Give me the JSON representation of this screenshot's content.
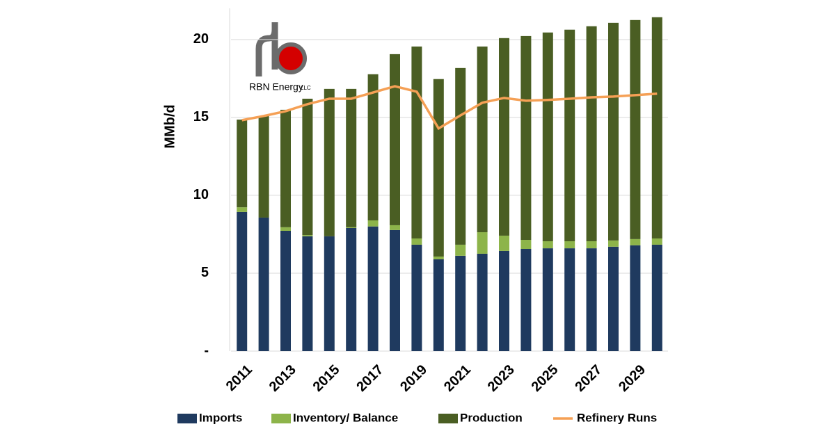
{
  "chart_data": {
    "type": "stacked-bar-line",
    "y_label": "MMb/d",
    "categories": [
      "2011",
      null,
      "2013",
      null,
      "2015",
      null,
      "2017",
      null,
      "2019",
      null,
      "2021",
      null,
      "2023",
      null,
      "2025",
      null,
      "2027",
      null,
      "2029",
      null
    ],
    "ylim": [
      0,
      22
    ],
    "yticks": [
      {
        "value": 0,
        "label": "-"
      },
      5,
      10,
      15,
      20
    ],
    "grid": true,
    "legend": "bottom",
    "series": [
      {
        "name": "Imports",
        "color": "#1f3a5f",
        "kind": "bar",
        "values": [
          8.93,
          8.57,
          7.72,
          7.37,
          7.37,
          7.9,
          8.0,
          7.77,
          6.83,
          5.89,
          6.12,
          6.25,
          6.43,
          6.56,
          6.6,
          6.6,
          6.6,
          6.7,
          6.79,
          6.83
        ]
      },
      {
        "name": "Inventory/ Balance",
        "color": "#8db44a",
        "kind": "bar",
        "values": [
          0.3,
          0,
          0.23,
          0.08,
          0,
          0.05,
          0.39,
          0.31,
          0.4,
          0.18,
          0.71,
          1.38,
          0.98,
          0.58,
          0.45,
          0.45,
          0.45,
          0.4,
          0.4,
          0.4
        ]
      },
      {
        "name": "Production",
        "color": "#4a5e23",
        "kind": "bar",
        "values": [
          5.63,
          6.52,
          7.54,
          8.75,
          9.46,
          8.88,
          9.38,
          10.98,
          12.32,
          11.39,
          11.34,
          11.92,
          12.68,
          13.08,
          13.4,
          13.58,
          13.8,
          13.97,
          14.06,
          14.2
        ]
      },
      {
        "name": "Refinery Runs",
        "color": "#f5a055",
        "kind": "line",
        "values": [
          14.82,
          15.09,
          15.4,
          15.85,
          16.2,
          16.2,
          16.6,
          17.0,
          16.65,
          14.29,
          15.13,
          15.94,
          16.25,
          16.07,
          16.12,
          16.2,
          16.29,
          16.34,
          16.43,
          16.52
        ]
      }
    ]
  },
  "logo": {
    "name": "RBN Energy",
    "suffix": "LLC"
  }
}
